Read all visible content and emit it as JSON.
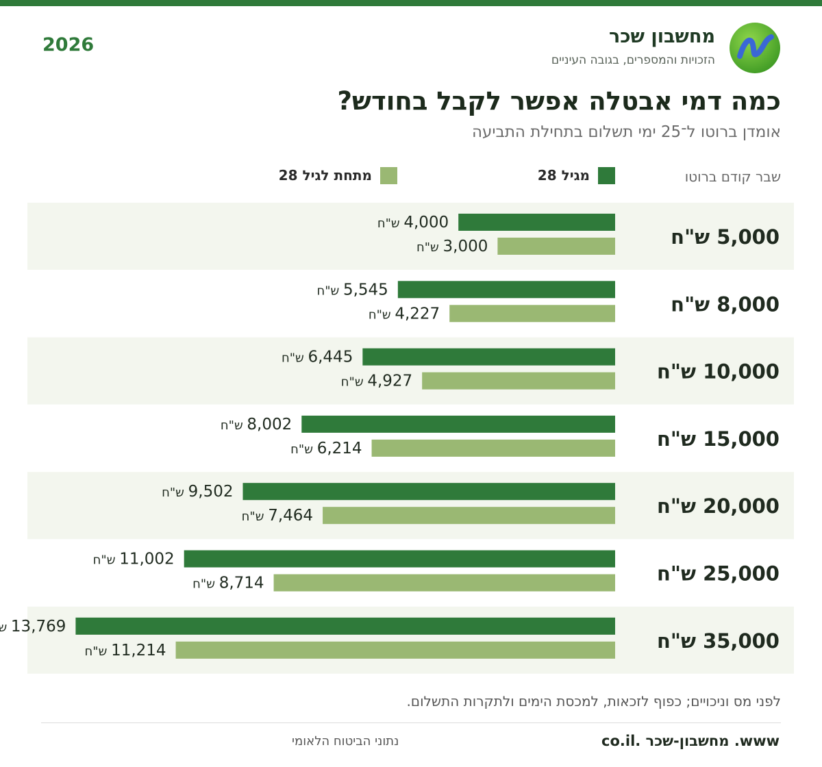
{
  "header": {
    "brand_title": "מחשבון שכר",
    "brand_tagline": "הזכויות והמספרים, בגובה העיניים",
    "year": "2026"
  },
  "title": "כמה דמי אבטלה אפשר לקבל בחודש?",
  "subtitle": "אומדן ברוטו ל־25 ימי תשלום בתחילת התביעה",
  "axis_header": "שבר קודם ברוטו",
  "legend": {
    "series_a": "מגיל 28",
    "series_b": "מתחת לגיל 28"
  },
  "colors": {
    "accent": "#2f7a3a",
    "series_a": "#2f7a3a",
    "series_b": "#9ab873",
    "row_band": "#f3f6ee",
    "logo_outer": "#4caf2c",
    "logo_inner": "#3a67d6"
  },
  "currency_suffix": "ש\"ח",
  "chart_data": {
    "type": "bar",
    "orientation": "horizontal",
    "title": "כמה דמי אבטלה אפשר לקבל בחודש?",
    "subtitle": "אומדן ברוטו ל־25 ימי תשלום בתחילת התביעה",
    "ylabel": "שבר קודם ברוטו",
    "categories": [
      "5,000 ש\"ח",
      "8,000 ש\"ח",
      "10,000 ש\"ח",
      "15,000 ש\"ח",
      "20,000 ש\"ח",
      "25,000 ש\"ח",
      "35,000 ש\"ח"
    ],
    "series": [
      {
        "name": "מגיל 28",
        "values": [
          4000,
          5545,
          6445,
          8002,
          9502,
          11002,
          13769
        ]
      },
      {
        "name": "מתחת לגיל 28",
        "values": [
          3000,
          4227,
          4927,
          6214,
          7464,
          8714,
          11214
        ]
      }
    ],
    "xlim": [
      0,
      16500
    ],
    "legend": "top",
    "grid": false,
    "bar_direction": "right-to-left"
  },
  "footnote": "לפני מס וניכויים; כפוף לזכאות, למכסת הימים ולתקרות התשלום.",
  "footer": {
    "site": "www. מחשבון-שכר .co.il",
    "source": "נתוני הביטוח הלאומי"
  }
}
